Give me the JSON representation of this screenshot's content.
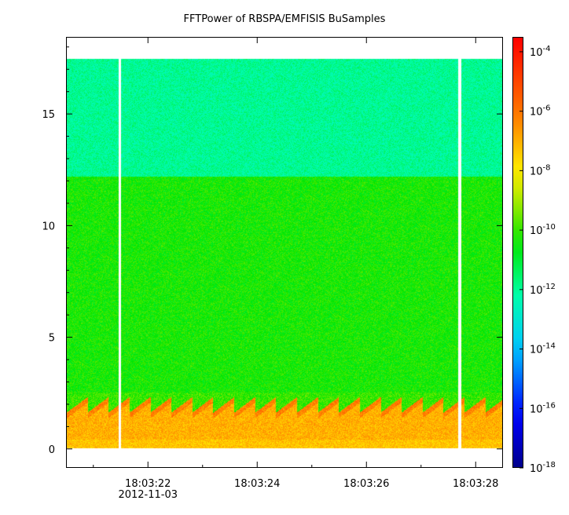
{
  "title": "FFTPower of RBSPA/EMFISIS  BuSamples",
  "chart_data": {
    "type": "heatmap",
    "title": "FFTPower of RBSPA/EMFISIS  BuSamples",
    "x_ticks": [
      {
        "label": "18:03:22",
        "sub": "2012-11-03",
        "t": 22
      },
      {
        "label": "18:03:24",
        "sub": "",
        "t": 24
      },
      {
        "label": "18:03:26",
        "sub": "",
        "t": 26
      },
      {
        "label": "18:03:28",
        "sub": "",
        "t": 28
      }
    ],
    "x_range_seconds": [
      20.5,
      28.5
    ],
    "y_ticks": [
      0,
      5,
      10,
      15
    ],
    "ylim": [
      -0.85,
      18.45
    ],
    "data_y_range": [
      0,
      17.5
    ],
    "gaps_seconds": [
      21.47,
      27.72
    ],
    "colorbar": {
      "scale": "log",
      "range_exponent": [
        -18,
        -3.5
      ],
      "ticks": [
        {
          "base": "10",
          "exp": "-4",
          "e": -4
        },
        {
          "base": "10",
          "exp": "-6",
          "e": -6
        },
        {
          "base": "10",
          "exp": "-8",
          "e": -8
        },
        {
          "base": "10",
          "exp": "-10",
          "e": -10
        },
        {
          "base": "10",
          "exp": "-12",
          "e": -12
        },
        {
          "base": "10",
          "exp": "-14",
          "e": -14
        },
        {
          "base": "10",
          "exp": "-16",
          "e": -16
        },
        {
          "base": "10",
          "exp": "-18",
          "e": -18
        }
      ]
    },
    "bands": [
      {
        "y_from": 12.2,
        "y_to": 17.5,
        "log10_power": -12.0
      },
      {
        "y_from": 2.3,
        "y_to": 12.2,
        "log10_power": -10.3
      },
      {
        "y_from": 0,
        "y_to": 2.3,
        "log10_power": -7.0
      }
    ]
  }
}
